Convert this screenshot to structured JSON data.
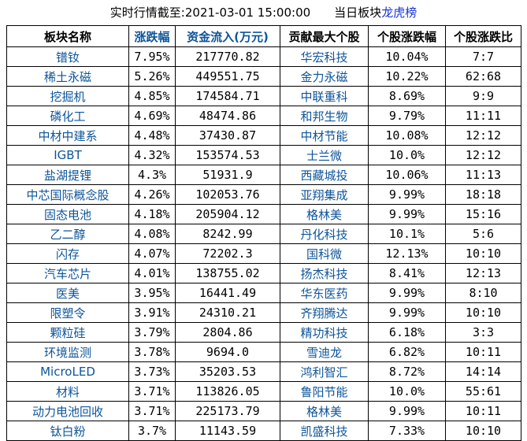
{
  "header": {
    "realtime_label": "实时行情截至:2021-03-01 15:00:00",
    "board_label": "当日板块",
    "dragon_tiger_link": "龙虎榜"
  },
  "table": {
    "columns": [
      "板块名称",
      "涨跌幅",
      "资金流入(万元)",
      "贡献最大个股",
      "个股涨跌幅",
      "个股涨跌比"
    ],
    "rows": [
      [
        "镨钕",
        "7.95%",
        "217770.82",
        "华宏科技",
        "10.04%",
        "7:7"
      ],
      [
        "稀土永磁",
        "5.26%",
        "449551.75",
        "金力永磁",
        "10.22%",
        "62:68"
      ],
      [
        "挖掘机",
        "4.85%",
        "174584.71",
        "中联重科",
        "8.69%",
        "9:9"
      ],
      [
        "磷化工",
        "4.69%",
        "48474.86",
        "和邦生物",
        "9.79%",
        "11:11"
      ],
      [
        "中材中建系",
        "4.48%",
        "37430.87",
        "中材节能",
        "10.08%",
        "12:12"
      ],
      [
        "IGBT",
        "4.32%",
        "153574.53",
        "士兰微",
        "10.0%",
        "12:12"
      ],
      [
        "盐湖提锂",
        "4.3%",
        "51931.9",
        "西藏城投",
        "10.06%",
        "11:13"
      ],
      [
        "中芯国际概念股",
        "4.26%",
        "102053.76",
        "亚翔集成",
        "9.99%",
        "18:18"
      ],
      [
        "固态电池",
        "4.18%",
        "205904.12",
        "格林美",
        "9.99%",
        "15:16"
      ],
      [
        "乙二醇",
        "4.08%",
        "8242.99",
        "丹化科技",
        "10.1%",
        "5:6"
      ],
      [
        "闪存",
        "4.07%",
        "72202.3",
        "国科微",
        "12.13%",
        "10:10"
      ],
      [
        "汽车芯片",
        "4.01%",
        "138755.02",
        "扬杰科技",
        "8.41%",
        "12:13"
      ],
      [
        "医美",
        "3.95%",
        "16441.49",
        "华东医药",
        "9.99%",
        "8:10"
      ],
      [
        "限塑令",
        "3.91%",
        "24310.21",
        "齐翔腾达",
        "9.99%",
        "10:10"
      ],
      [
        "颗粒硅",
        "3.79%",
        "2804.86",
        "精功科技",
        "6.18%",
        "3:3"
      ],
      [
        "环境监测",
        "3.78%",
        "9694.0",
        "雪迪龙",
        "6.82%",
        "10:11"
      ],
      [
        "MicroLED",
        "3.73%",
        "35203.53",
        "鸿利智汇",
        "8.72%",
        "14:14"
      ],
      [
        "材料",
        "3.71%",
        "113826.05",
        "鲁阳节能",
        "10.0%",
        "55:61"
      ],
      [
        "动力电池回收",
        "3.71%",
        "225173.79",
        "格林美",
        "9.99%",
        "10:11"
      ],
      [
        "钛白粉",
        "3.7%",
        "11143.59",
        "凯盛科技",
        "7.33%",
        "10:10"
      ]
    ]
  },
  "colors": {
    "link_blue": "#0d5498",
    "bright_link_blue": "#1733d1",
    "border_black": "#000000",
    "background": "#ffffff"
  }
}
